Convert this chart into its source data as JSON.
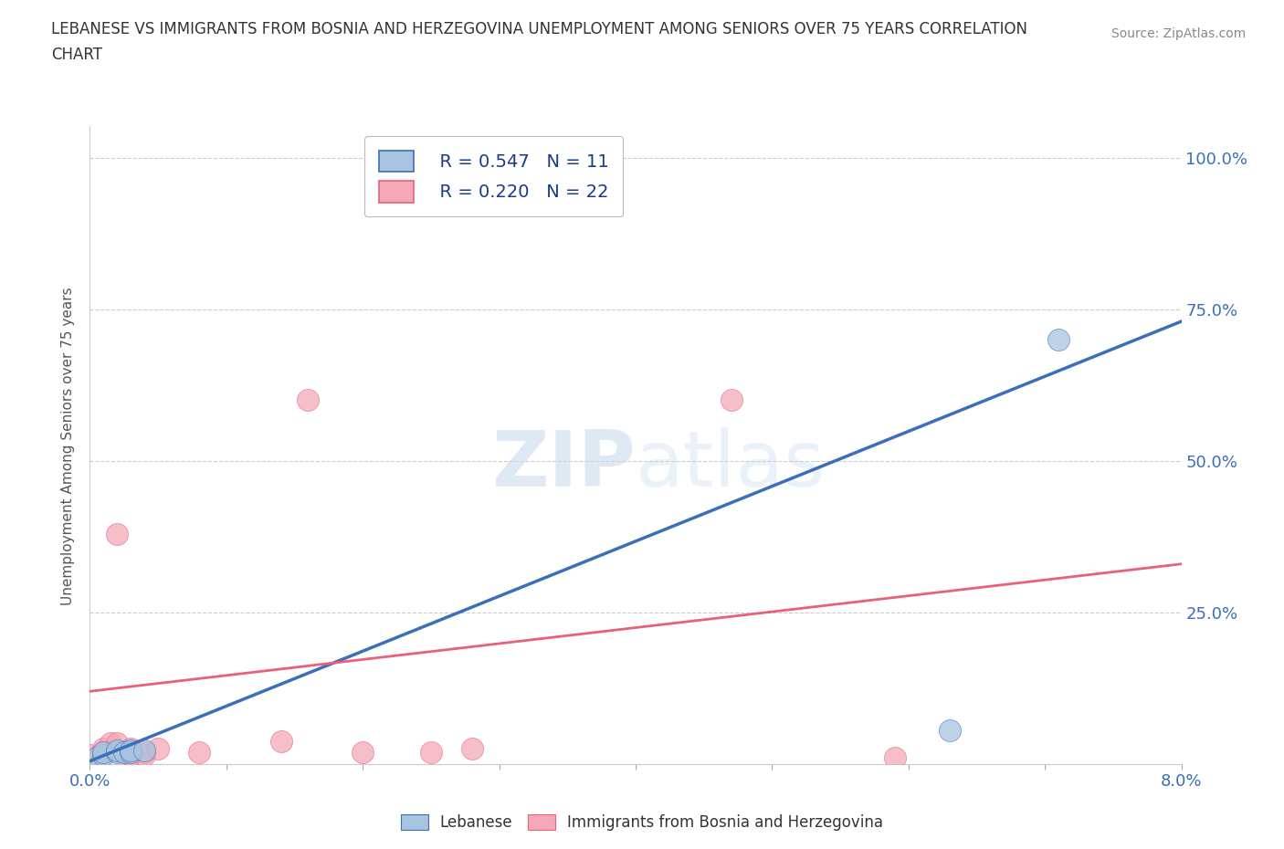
{
  "title_line1": "LEBANESE VS IMMIGRANTS FROM BOSNIA AND HERZEGOVINA UNEMPLOYMENT AMONG SENIORS OVER 75 YEARS CORRELATION",
  "title_line2": "CHART",
  "source": "Source: ZipAtlas.com",
  "ylabel": "Unemployment Among Seniors over 75 years",
  "xlim": [
    0.0,
    0.08
  ],
  "ylim": [
    0.0,
    1.05
  ],
  "xticks": [
    0.0,
    0.01,
    0.02,
    0.03,
    0.04,
    0.05,
    0.06,
    0.07,
    0.08
  ],
  "xtick_labels": [
    "0.0%",
    "",
    "",
    "",
    "",
    "",
    "",
    "",
    "8.0%"
  ],
  "ytick_vals": [
    0.0,
    0.25,
    0.5,
    0.75,
    1.0
  ],
  "ytick_labels": [
    "",
    "25.0%",
    "50.0%",
    "75.0%",
    "100.0%"
  ],
  "lebanese_color": "#a8c4e0",
  "bosnia_color": "#f4a8b8",
  "lebanese_line_color": "#3b6fba",
  "bosnia_line_color": "#e8607a",
  "lebanese_R": 0.547,
  "lebanese_N": 11,
  "bosnia_R": 0.22,
  "bosnia_N": 22,
  "watermark": "ZIPatlas",
  "watermark_color": "#c8d8e8",
  "background_color": "#ffffff",
  "lebanese_x": [
    0.0005,
    0.001,
    0.001,
    0.002,
    0.002,
    0.0025,
    0.003,
    0.003,
    0.004,
    0.063,
    0.071
  ],
  "lebanese_y": [
    0.01,
    0.015,
    0.02,
    0.02,
    0.022,
    0.02,
    0.02,
    0.022,
    0.022,
    0.055,
    0.7
  ],
  "bosnia_x": [
    0.0,
    0.0,
    0.001,
    0.001,
    0.0015,
    0.002,
    0.002,
    0.0025,
    0.003,
    0.003,
    0.003,
    0.004,
    0.004,
    0.005,
    0.008,
    0.014,
    0.016,
    0.02,
    0.025,
    0.028,
    0.047,
    0.059
  ],
  "bosnia_y": [
    0.005,
    0.015,
    0.02,
    0.025,
    0.035,
    0.035,
    0.38,
    0.02,
    0.02,
    0.025,
    0.015,
    0.02,
    0.015,
    0.025,
    0.02,
    0.038,
    0.6,
    0.02,
    0.02,
    0.025,
    0.6,
    0.01
  ]
}
